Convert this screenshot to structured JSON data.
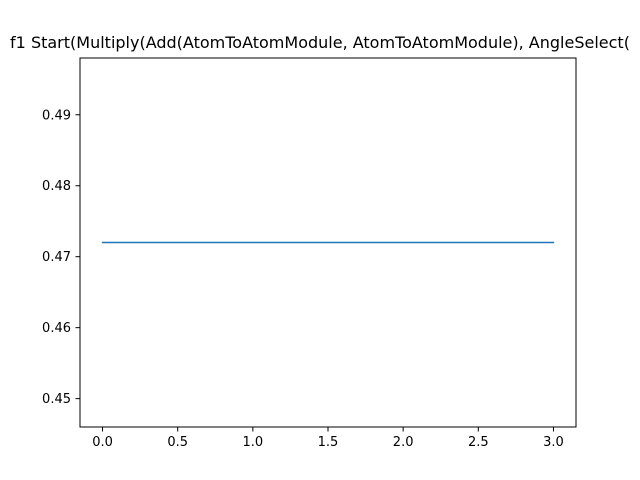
{
  "chart_data": {
    "type": "line",
    "title": "f1 Start(Multiply(Add(AtomToAtomModule, AtomToAtomModule), AngleSelect(",
    "xlabel": "",
    "ylabel": "",
    "x": [
      0,
      1,
      2,
      3
    ],
    "series": [
      {
        "values": [
          0.472,
          0.472,
          0.472,
          0.472
        ],
        "color": "#1f77b4"
      }
    ],
    "xlim": [
      -0.15,
      3.15
    ],
    "ylim": [
      0.446,
      0.498
    ],
    "xticks": [
      0.0,
      0.5,
      1.0,
      1.5,
      2.0,
      2.5,
      3.0
    ],
    "xtick_labels": [
      "0.0",
      "0.5",
      "1.0",
      "1.5",
      "2.0",
      "2.5",
      "3.0"
    ],
    "yticks": [
      0.45,
      0.46,
      0.47,
      0.48,
      0.49
    ],
    "ytick_labels": [
      "0.45",
      "0.46",
      "0.47",
      "0.48",
      "0.49"
    ],
    "grid": false
  }
}
